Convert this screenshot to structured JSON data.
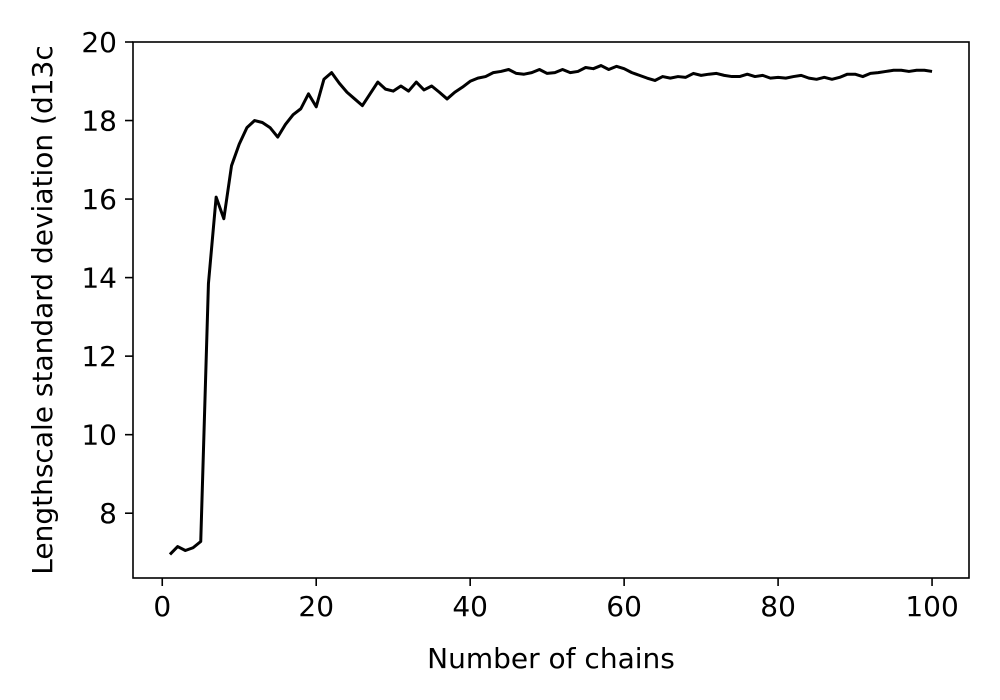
{
  "chart_data": {
    "type": "line",
    "title": "",
    "xlabel": "Number of chains",
    "ylabel": "Lengthscale standard deviation (d13c",
    "xlim": [
      -3.8,
      104.8
    ],
    "ylim": [
      6.35,
      20.0
    ],
    "xticks": [
      0,
      20,
      40,
      60,
      80,
      100
    ],
    "yticks": [
      8,
      10,
      12,
      14,
      16,
      18,
      20
    ],
    "grid": false,
    "legend": "none",
    "line_color": "#000000",
    "series": [
      {
        "x": [
          1,
          2,
          3,
          4,
          5,
          6,
          7,
          8,
          9,
          10,
          11,
          12,
          13,
          14,
          15,
          16,
          17,
          18,
          19,
          20,
          21,
          22,
          23,
          24,
          25,
          26,
          27,
          28,
          29,
          30,
          31,
          32,
          33,
          34,
          35,
          36,
          37,
          38,
          39,
          40,
          41,
          42,
          43,
          44,
          45,
          46,
          47,
          48,
          49,
          50,
          51,
          52,
          53,
          54,
          55,
          56,
          57,
          58,
          59,
          60,
          61,
          62,
          63,
          64,
          65,
          66,
          67,
          68,
          69,
          70,
          71,
          72,
          73,
          74,
          75,
          76,
          77,
          78,
          79,
          80,
          81,
          82,
          83,
          84,
          85,
          86,
          87,
          88,
          89,
          90,
          91,
          92,
          93,
          94,
          95,
          96,
          97,
          98,
          99,
          100
        ],
        "values": [
          6.95,
          7.15,
          7.05,
          7.12,
          7.28,
          13.85,
          16.05,
          15.5,
          16.85,
          17.4,
          17.82,
          18.0,
          17.95,
          17.82,
          17.58,
          17.9,
          18.15,
          18.3,
          18.68,
          18.35,
          19.05,
          19.22,
          18.95,
          18.72,
          18.55,
          18.38,
          18.68,
          18.98,
          18.8,
          18.75,
          18.88,
          18.75,
          18.98,
          18.78,
          18.88,
          18.72,
          18.55,
          18.72,
          18.85,
          19.0,
          19.08,
          19.12,
          19.22,
          19.25,
          19.3,
          19.2,
          19.18,
          19.22,
          19.3,
          19.2,
          19.22,
          19.3,
          19.22,
          19.25,
          19.35,
          19.32,
          19.4,
          19.3,
          19.38,
          19.32,
          19.22,
          19.15,
          19.08,
          19.02,
          19.12,
          19.08,
          19.12,
          19.1,
          19.2,
          19.15,
          19.18,
          19.2,
          19.15,
          19.12,
          19.12,
          19.18,
          19.12,
          19.15,
          19.08,
          19.1,
          19.08,
          19.12,
          19.15,
          19.08,
          19.05,
          19.1,
          19.05,
          19.1,
          19.18,
          19.18,
          19.12,
          19.2,
          19.22,
          19.25,
          19.28,
          19.28,
          19.25,
          19.28,
          19.28,
          19.25
        ]
      }
    ]
  }
}
